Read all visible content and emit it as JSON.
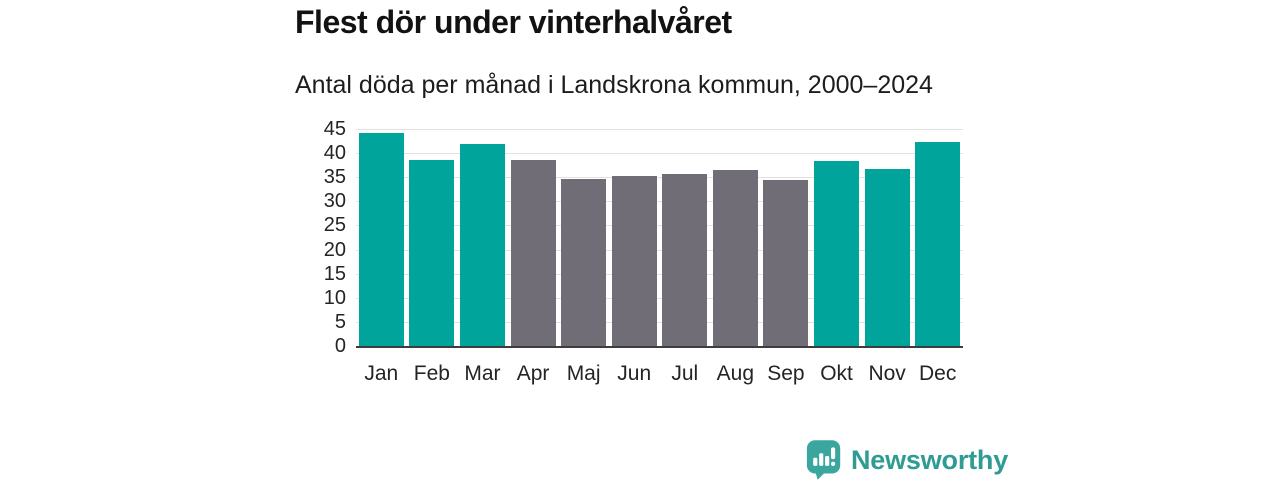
{
  "header": {
    "title": "Flest dör under vinterhalvåret",
    "subtitle": "Antal döda per månad i Landskrona kommun, 2000–2024"
  },
  "chart_data": {
    "type": "bar",
    "title": "Flest dör under vinterhalvåret",
    "subtitle": "Antal döda per månad i Landskrona kommun, 2000–2024",
    "categories": [
      "Jan",
      "Feb",
      "Mar",
      "Apr",
      "Maj",
      "Jun",
      "Jul",
      "Aug",
      "Sep",
      "Okt",
      "Nov",
      "Dec"
    ],
    "values": [
      44.1,
      38.6,
      41.9,
      38.5,
      34.6,
      35.3,
      35.6,
      36.4,
      34.4,
      38.3,
      36.8,
      42.3
    ],
    "bar_color_keys": [
      "teal",
      "teal",
      "teal",
      "gray",
      "gray",
      "gray",
      "gray",
      "gray",
      "gray",
      "teal",
      "teal",
      "teal"
    ],
    "xlabel": "",
    "ylabel": "",
    "ylim": [
      0,
      45
    ],
    "ytick_step": 5,
    "ytick_labels": [
      "0",
      "5",
      "10",
      "15",
      "20",
      "25",
      "30",
      "35",
      "40",
      "45"
    ],
    "grid": "horizontal",
    "legend": "none"
  },
  "colors": {
    "teal": "#00a49a",
    "gray": "#706d76",
    "grid": "#e1e1e1",
    "axis": "#3d3d3d",
    "tick_text": "#242424",
    "title_text": "#121212",
    "logo_text": "#2f9c94",
    "logo_bubble": "#3ba69d"
  },
  "branding": {
    "logo_text": "Newsworthy"
  }
}
